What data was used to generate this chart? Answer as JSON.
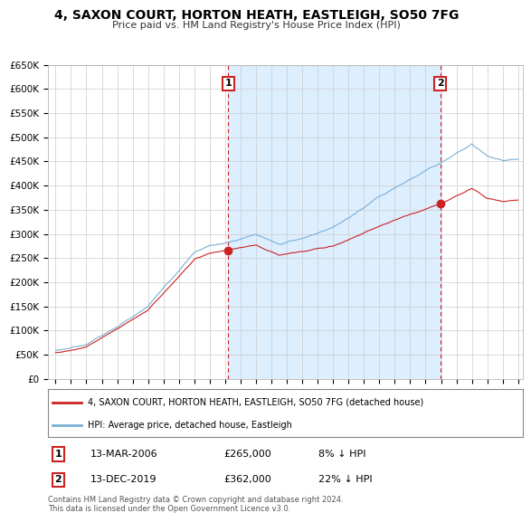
{
  "title": "4, SAXON COURT, HORTON HEATH, EASTLEIGH, SO50 7FG",
  "subtitle": "Price paid vs. HM Land Registry's House Price Index (HPI)",
  "ylabel_ticks": [
    "£0",
    "£50K",
    "£100K",
    "£150K",
    "£200K",
    "£250K",
    "£300K",
    "£350K",
    "£400K",
    "£450K",
    "£500K",
    "£550K",
    "£600K",
    "£650K"
  ],
  "ytick_values": [
    0,
    50000,
    100000,
    150000,
    200000,
    250000,
    300000,
    350000,
    400000,
    450000,
    500000,
    550000,
    600000,
    650000
  ],
  "hpi_color": "#7aafd4",
  "price_color": "#cc2222",
  "sale1_date": "13-MAR-2006",
  "sale1_price": 265000,
  "sale1_hpi_diff": "8% ↓ HPI",
  "sale2_date": "13-DEC-2019",
  "sale2_price": 362000,
  "sale2_hpi_diff": "22% ↓ HPI",
  "legend_label1": "4, SAXON COURT, HORTON HEATH, EASTLEIGH, SO50 7FG (detached house)",
  "legend_label2": "HPI: Average price, detached house, Eastleigh",
  "footer": "Contains HM Land Registry data © Crown copyright and database right 2024.\nThis data is licensed under the Open Government Licence v3.0.",
  "background_color": "#ffffff",
  "grid_color": "#cccccc",
  "highlight_color": "#ddeeff",
  "xmin": 1995,
  "xmax": 2025,
  "ymin": 0,
  "ymax": 650000
}
